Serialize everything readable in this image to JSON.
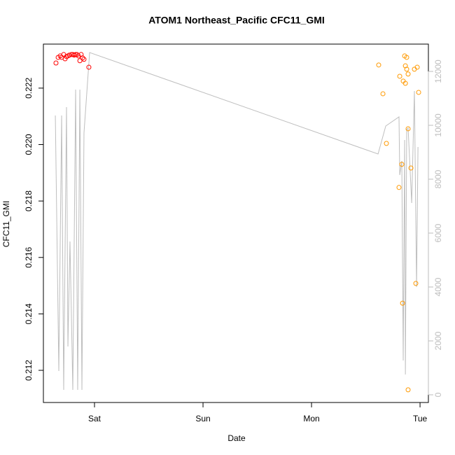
{
  "chart_data": {
    "type": "scatter",
    "title": "ATOM1 Northeast_Pacific CFC11_GMI",
    "x_label": "Date",
    "y_label": "CFC11_GMI",
    "xlim": [
      0.529,
      4.077
    ],
    "xticks": [
      {
        "value": 1,
        "label": "Sat"
      },
      {
        "value": 2,
        "label": "Sun"
      },
      {
        "value": 3,
        "label": "Mon"
      },
      {
        "value": 4,
        "label": "Tue"
      }
    ],
    "ylim": [
      0.21086,
      0.22356
    ],
    "yticks": [
      0.212,
      0.214,
      0.216,
      0.218,
      {
        "value": 0.22,
        "label": "0.220"
      },
      0.222
    ],
    "y2lim": [
      -286,
      13013
    ],
    "y2ticks": [
      0,
      2000,
      4000,
      6000,
      8000,
      10000,
      12000
    ],
    "series": [
      {
        "color": "#ff0000",
        "x": [
          0.645,
          0.665,
          0.684,
          0.697,
          0.716,
          0.729,
          0.742,
          0.755,
          0.768,
          0.787,
          0.8,
          0.813,
          0.826,
          0.839,
          0.852,
          0.865,
          0.877,
          0.89,
          0.903,
          0.948
        ],
        "values": [
          0.22289,
          0.22309,
          0.22314,
          0.22309,
          0.22319,
          0.22304,
          0.22312,
          0.22314,
          0.22317,
          0.22319,
          0.22319,
          0.22317,
          0.22319,
          0.22319,
          0.22314,
          0.22297,
          0.22319,
          0.22307,
          0.22302,
          0.22274
        ]
      },
      {
        "color": "#ff9900",
        "x": [
          3.619,
          3.658,
          3.69,
          3.806,
          3.813,
          3.832,
          3.839,
          3.845,
          3.858,
          3.865,
          3.865,
          3.877,
          3.877,
          3.89,
          3.89,
          3.89,
          3.916,
          3.948,
          3.961,
          3.974,
          3.987
        ],
        "values": [
          0.22282,
          0.2218,
          0.22004,
          0.21848,
          0.22242,
          0.2193,
          0.21438,
          0.22225,
          0.22314,
          0.22217,
          0.22279,
          0.22309,
          0.22267,
          0.2225,
          0.22056,
          0.21131,
          0.21917,
          0.22267,
          0.21508,
          0.22274,
          0.22185
        ]
      },
      {
        "type": "line",
        "axis": "y2",
        "color": "#bebebe",
        "x": [
          0.639,
          0.671,
          0.697,
          0.716,
          0.742,
          0.755,
          0.774,
          0.8,
          0.826,
          0.845,
          0.865,
          0.884,
          0.903,
          0.955,
          3.613,
          3.684,
          3.806,
          3.813,
          3.832,
          3.845,
          3.858,
          3.865,
          3.877,
          3.89,
          3.923,
          3.948,
          3.968,
          3.981
        ],
        "values": [
          10364,
          883,
          10364,
          182,
          10675,
          1792,
          5688,
          182,
          11325,
          182,
          11325,
          182,
          9714,
          12701,
          8935,
          9974,
          10312,
          8156,
          8675,
          1273,
          9455,
          753,
          9844,
          9896,
          7117,
          11273,
          4000,
          9195
        ]
      }
    ]
  }
}
